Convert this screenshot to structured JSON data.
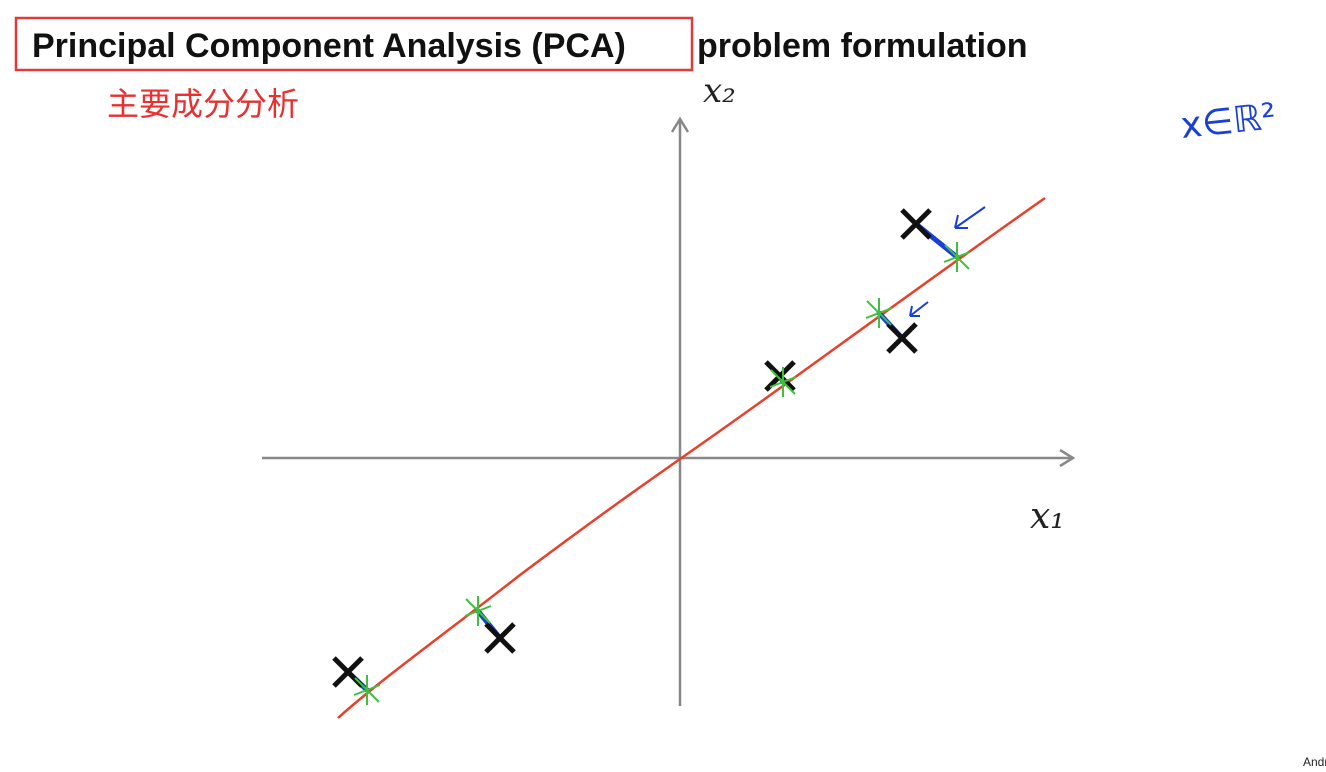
{
  "slide": {
    "title_highlighted": "Principal Component Analysis (PCA)",
    "title_rest": "problem formulation",
    "annotation_cn": "主要成分分析",
    "x_axis_label": "x₁",
    "y_axis_label": "x₂",
    "handwritten_note": "x∈ℝ²",
    "footer": "Andrew Ng"
  }
}
